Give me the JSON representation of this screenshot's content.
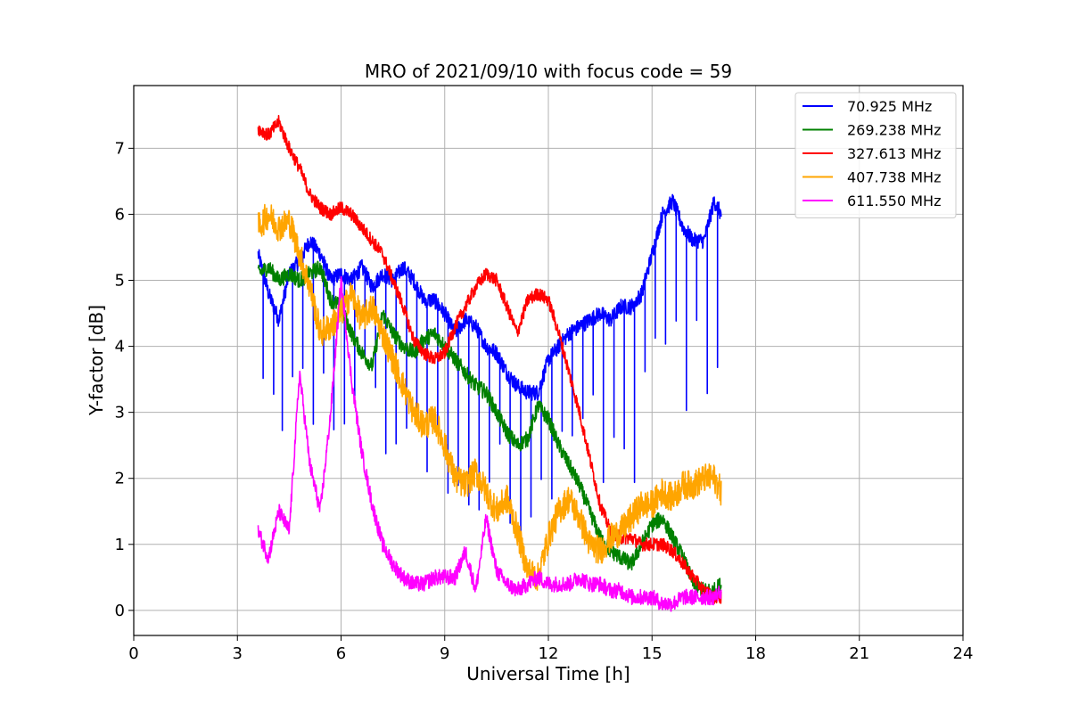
{
  "chart_data": {
    "type": "line",
    "title": "MRO of 2021/09/10 with focus code = 59",
    "xlabel": "Universal Time [h]",
    "ylabel": "Y-factor [dB]",
    "xlim": [
      0,
      24
    ],
    "ylim": [
      -0.38,
      7.95
    ],
    "xticks": [
      0,
      3,
      6,
      9,
      12,
      15,
      18,
      21,
      24
    ],
    "yticks": [
      0,
      1,
      2,
      3,
      4,
      5,
      6,
      7
    ],
    "grid": true,
    "legend_position": "top-right",
    "series": [
      {
        "name": "70.925 MHz",
        "color": "#0000ff",
        "x": [
          3.6,
          3.9,
          4.2,
          4.5,
          4.8,
          5.1,
          5.4,
          5.7,
          6.0,
          6.3,
          6.6,
          6.9,
          7.2,
          7.5,
          7.8,
          8.1,
          8.4,
          8.7,
          9.0,
          9.3,
          9.6,
          9.9,
          10.2,
          10.5,
          10.8,
          11.1,
          11.4,
          11.7,
          12.0,
          12.3,
          12.6,
          12.9,
          13.2,
          13.5,
          13.8,
          14.1,
          14.4,
          14.7,
          15.0,
          15.3,
          15.6,
          15.9,
          16.2,
          16.5,
          16.8,
          17.0
        ],
        "y": [
          5.4,
          4.8,
          4.4,
          5.1,
          5.3,
          5.6,
          5.4,
          5.0,
          5.1,
          5.0,
          5.2,
          4.9,
          5.1,
          5.0,
          5.2,
          5.0,
          4.7,
          4.7,
          4.5,
          4.2,
          4.4,
          4.3,
          4.0,
          3.9,
          3.6,
          3.4,
          3.3,
          3.3,
          3.8,
          4.0,
          4.2,
          4.3,
          4.4,
          4.5,
          4.4,
          4.6,
          4.6,
          4.8,
          5.4,
          6.0,
          6.2,
          5.8,
          5.6,
          5.6,
          6.2,
          6.0
        ],
        "dips": [
          3.75,
          4.05,
          4.3,
          4.6,
          4.9,
          5.2,
          5.5,
          5.8,
          6.1,
          6.4,
          6.7,
          7.0,
          7.3,
          7.6,
          7.9,
          8.2,
          8.5,
          8.8,
          9.1,
          9.4,
          9.7,
          10.0,
          10.3,
          10.6,
          10.9,
          11.2,
          11.5,
          11.8,
          12.1,
          12.4,
          12.7,
          13.0,
          13.3,
          13.6,
          13.9,
          14.2,
          14.5,
          14.8,
          15.1,
          15.4,
          15.7,
          16.0,
          16.3,
          16.6,
          16.9
        ]
      },
      {
        "name": "269.238 MHz",
        "color": "#008000",
        "x": [
          3.6,
          3.9,
          4.2,
          4.5,
          4.8,
          5.1,
          5.4,
          5.7,
          6.0,
          6.3,
          6.6,
          6.9,
          7.2,
          7.5,
          7.8,
          8.1,
          8.4,
          8.7,
          9.0,
          9.3,
          9.6,
          9.9,
          10.2,
          10.5,
          10.8,
          11.1,
          11.4,
          11.7,
          12.0,
          12.3,
          12.6,
          12.9,
          13.2,
          13.5,
          13.8,
          14.1,
          14.4,
          14.7,
          15.0,
          15.3,
          15.6,
          15.9,
          16.2,
          16.5,
          16.8,
          17.0
        ],
        "y": [
          5.1,
          5.2,
          5.0,
          5.1,
          5.0,
          5.1,
          5.2,
          4.7,
          4.6,
          4.2,
          3.9,
          3.7,
          4.5,
          4.2,
          4.0,
          3.9,
          4.1,
          4.2,
          4.0,
          3.8,
          3.6,
          3.4,
          3.3,
          3.0,
          2.7,
          2.5,
          2.6,
          3.1,
          2.9,
          2.5,
          2.2,
          1.9,
          1.5,
          1.1,
          0.9,
          0.8,
          0.7,
          1.0,
          1.3,
          1.4,
          1.1,
          0.8,
          0.4,
          0.3,
          0.3,
          0.4
        ]
      },
      {
        "name": "327.613 MHz",
        "color": "#ff0000",
        "x": [
          3.6,
          3.9,
          4.2,
          4.5,
          4.8,
          5.1,
          5.4,
          5.7,
          6.0,
          6.3,
          6.6,
          6.9,
          7.2,
          7.5,
          7.8,
          8.1,
          8.4,
          8.7,
          9.0,
          9.3,
          9.6,
          9.9,
          10.2,
          10.5,
          10.8,
          11.1,
          11.4,
          11.7,
          12.0,
          12.3,
          12.6,
          12.9,
          13.2,
          13.5,
          13.8,
          14.1,
          14.4,
          14.7,
          15.0,
          15.3,
          15.6,
          15.9,
          16.2,
          16.5,
          16.8,
          17.0
        ],
        "y": [
          7.3,
          7.2,
          7.4,
          7.0,
          6.7,
          6.3,
          6.1,
          6.0,
          6.1,
          6.0,
          5.8,
          5.6,
          5.4,
          5.0,
          4.6,
          4.1,
          3.9,
          3.8,
          3.9,
          4.3,
          4.6,
          4.9,
          5.1,
          5.0,
          4.6,
          4.2,
          4.7,
          4.8,
          4.7,
          4.2,
          3.6,
          3.0,
          2.3,
          1.6,
          1.2,
          1.1,
          1.1,
          1.0,
          1.0,
          1.0,
          0.9,
          0.7,
          0.5,
          0.3,
          0.2,
          0.2
        ]
      },
      {
        "name": "407.738 MHz",
        "color": "#ffa500",
        "x": [
          3.6,
          3.9,
          4.2,
          4.5,
          4.8,
          5.1,
          5.4,
          5.7,
          6.0,
          6.3,
          6.6,
          6.9,
          7.2,
          7.5,
          7.8,
          8.1,
          8.4,
          8.7,
          9.0,
          9.3,
          9.6,
          9.9,
          10.2,
          10.5,
          10.8,
          11.1,
          11.4,
          11.7,
          12.0,
          12.3,
          12.6,
          12.9,
          13.2,
          13.5,
          13.8,
          14.1,
          14.4,
          14.7,
          15.0,
          15.3,
          15.6,
          15.9,
          16.2,
          16.5,
          16.8,
          17.0
        ],
        "y": [
          5.8,
          6.0,
          5.8,
          5.9,
          5.4,
          4.9,
          4.2,
          4.3,
          4.5,
          4.8,
          4.4,
          4.6,
          4.2,
          3.8,
          3.4,
          3.0,
          2.8,
          2.9,
          2.5,
          2.0,
          1.9,
          2.1,
          1.8,
          1.5,
          1.7,
          1.2,
          0.6,
          0.5,
          1.1,
          1.5,
          1.7,
          1.4,
          1.0,
          0.9,
          1.1,
          1.2,
          1.4,
          1.6,
          1.6,
          1.8,
          1.7,
          1.9,
          1.9,
          2.0,
          2.0,
          1.8
        ]
      },
      {
        "name": "611.550 MHz",
        "color": "#ff00ff",
        "x": [
          3.6,
          3.9,
          4.2,
          4.5,
          4.8,
          5.1,
          5.4,
          5.7,
          6.0,
          6.3,
          6.6,
          6.9,
          7.2,
          7.5,
          7.8,
          8.1,
          8.4,
          8.7,
          9.0,
          9.3,
          9.6,
          9.9,
          10.2,
          10.5,
          10.8,
          11.1,
          11.4,
          11.7,
          12.0,
          12.3,
          12.6,
          12.9,
          13.2,
          13.5,
          13.8,
          14.1,
          14.4,
          14.7,
          15.0,
          15.3,
          15.6,
          15.9,
          16.2,
          16.5,
          16.8,
          17.0
        ],
        "y": [
          1.2,
          0.8,
          1.5,
          1.2,
          3.6,
          2.2,
          1.5,
          3.0,
          5.0,
          3.5,
          2.4,
          1.6,
          1.0,
          0.7,
          0.5,
          0.4,
          0.4,
          0.5,
          0.5,
          0.5,
          0.9,
          0.3,
          1.4,
          0.6,
          0.4,
          0.3,
          0.4,
          0.5,
          0.4,
          0.4,
          0.4,
          0.5,
          0.4,
          0.4,
          0.3,
          0.3,
          0.2,
          0.2,
          0.2,
          0.1,
          0.1,
          0.2,
          0.2,
          0.2,
          0.2,
          0.3
        ]
      }
    ]
  }
}
